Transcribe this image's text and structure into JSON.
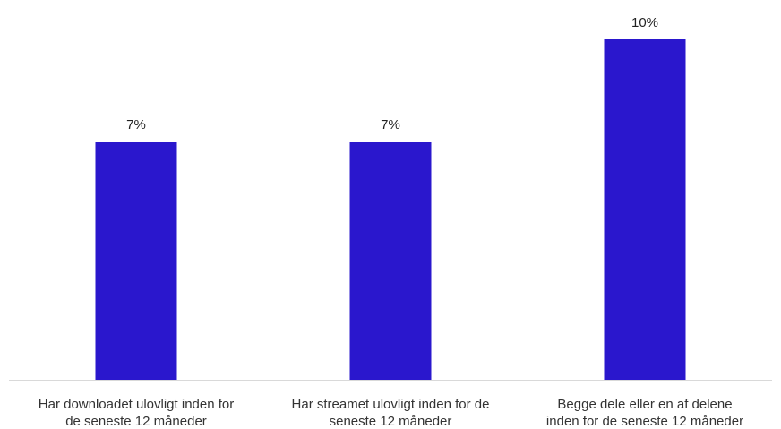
{
  "colors": {
    "bar": "#2a17cd",
    "axis": "#d9d9d9",
    "label_text": "#222222"
  },
  "chart_data": {
    "type": "bar",
    "title": "",
    "xlabel": "",
    "ylabel": "",
    "ylim": [
      0,
      10
    ],
    "grid": false,
    "legend": "none",
    "categories": [
      [
        "Har downloadet ulovligt inden for",
        "de seneste 12 måneder"
      ],
      [
        "Har streamet ulovligt inden for de",
        "seneste 12 måneder"
      ],
      [
        "Begge dele eller en af delene",
        "inden for de seneste 12 måneder"
      ]
    ],
    "values": [
      7,
      7,
      10
    ],
    "data_labels": [
      "7%",
      "7%",
      "10%"
    ]
  }
}
